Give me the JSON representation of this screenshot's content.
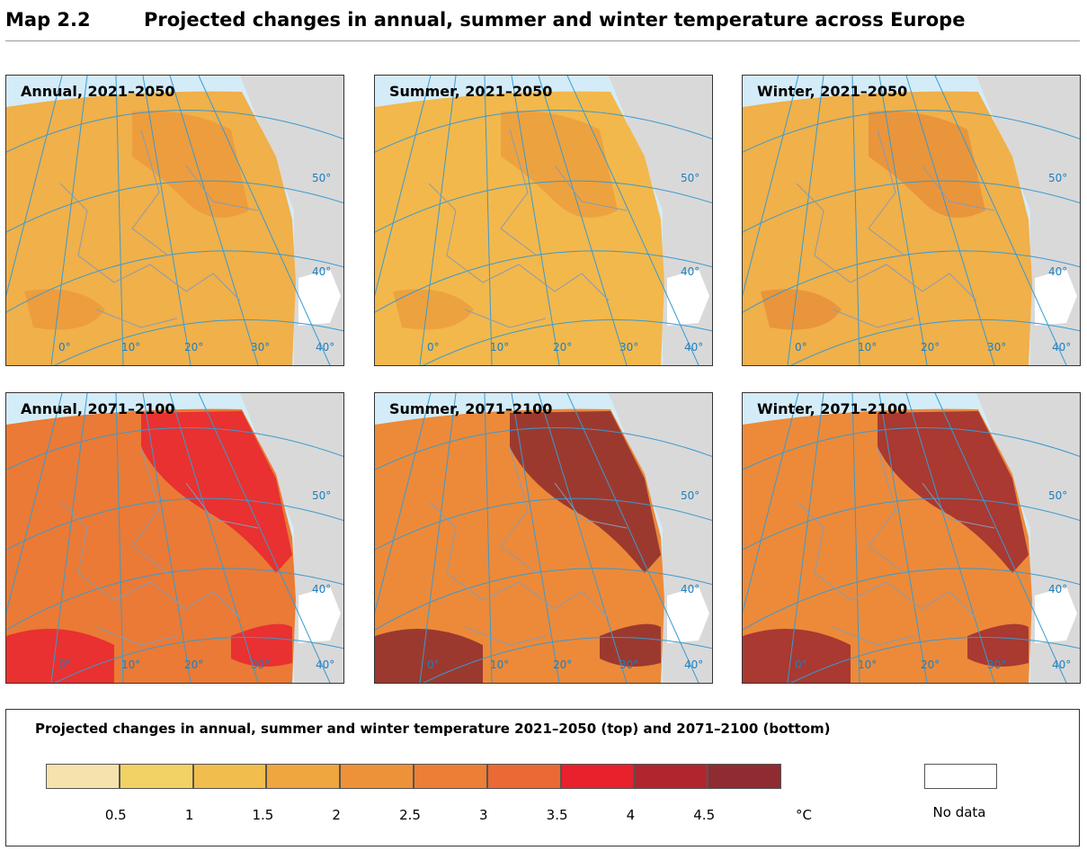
{
  "header": {
    "label": "Map 2.2",
    "title": "Projected changes in annual, summer and winter temperature across Europe"
  },
  "panels": [
    {
      "title": "Annual, 2021–2050",
      "base_color": "#f0b04a",
      "accent_color": "#ec9a3c",
      "lat_labels": [
        "50°",
        "40°"
      ],
      "lon_labels": [
        "0°",
        "10°",
        "20°",
        "30°",
        "40°"
      ]
    },
    {
      "title": "Summer, 2021–2050",
      "base_color": "#f2b84c",
      "accent_color": "#ec9d3e",
      "lat_labels": [
        "50°",
        "40°"
      ],
      "lon_labels": [
        "0°",
        "10°",
        "20°",
        "30°",
        "40°"
      ]
    },
    {
      "title": "Winter, 2021–2050",
      "base_color": "#f0b04a",
      "accent_color": "#e8913a",
      "lat_labels": [
        "50°",
        "40°"
      ],
      "lon_labels": [
        "0°",
        "10°",
        "20°",
        "30°",
        "40°"
      ]
    },
    {
      "title": "Annual, 2071–2100",
      "base_color": "#ea7a36",
      "accent_color": "#e8242f",
      "lat_labels": [
        "50°",
        "40°"
      ],
      "lon_labels": [
        "0°",
        "10°",
        "20°",
        "30°",
        "40°"
      ]
    },
    {
      "title": "Summer, 2071–2100",
      "base_color": "#ec8a3a",
      "accent_color": "#8e2a2e",
      "lat_labels": [
        "50°",
        "40°"
      ],
      "lon_labels": [
        "0°",
        "10°",
        "20°",
        "30°",
        "40°"
      ]
    },
    {
      "title": "Winter, 2071–2100",
      "base_color": "#ec8a3a",
      "accent_color": "#9e2a30",
      "lat_labels": [
        "50°",
        "40°"
      ],
      "lon_labels": [
        "0°",
        "10°",
        "20°",
        "30°",
        "40°"
      ]
    }
  ],
  "legend": {
    "title": "Projected changes in annual, summer and winter temperature 2021–2050 (top) and 2071–2100 (bottom)",
    "colors": [
      "#f5e2ad",
      "#f2d264",
      "#f1bd4c",
      "#efa63e",
      "#ee9239",
      "#ec7e36",
      "#ea6934",
      "#e8212d",
      "#b1262e",
      "#8e2c32"
    ],
    "labels": [
      "0.5",
      "1",
      "1.5",
      "2",
      "2.5",
      "3",
      "3.5",
      "4",
      "4.5"
    ],
    "unit": "°C",
    "no_data": "No data"
  }
}
